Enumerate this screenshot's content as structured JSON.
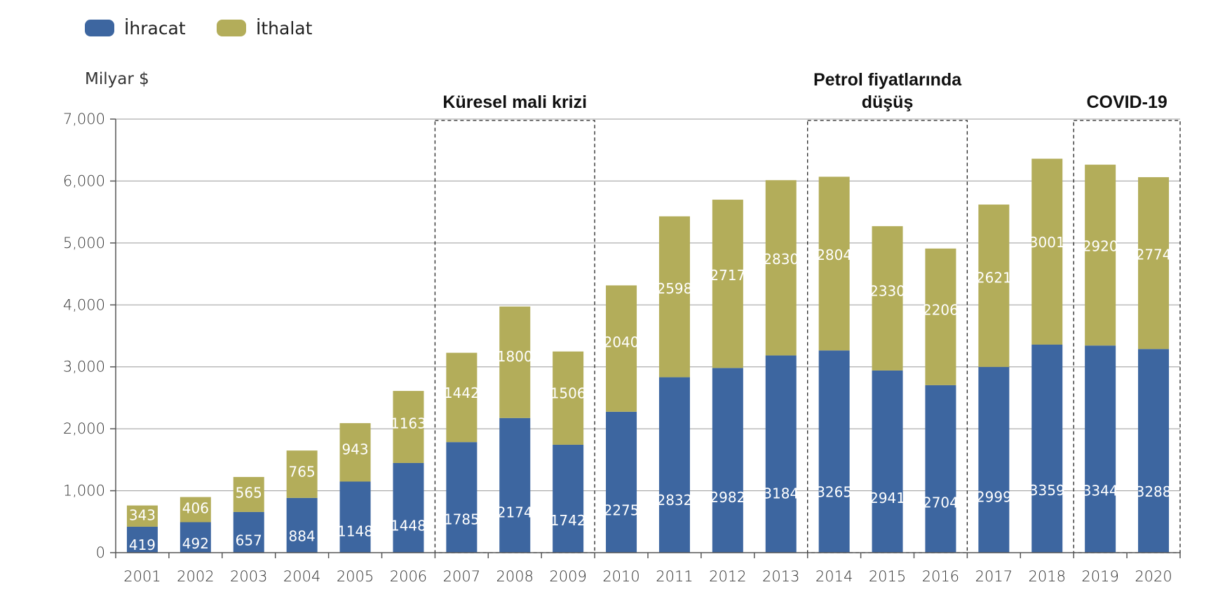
{
  "chart_data": {
    "type": "bar",
    "stacked": true,
    "ylabel": "Milyar $",
    "ylim": [
      0,
      7000
    ],
    "yticks": [
      0,
      1000,
      2000,
      3000,
      4000,
      5000,
      6000,
      7000
    ],
    "ytick_labels": [
      "0",
      "1,000",
      "2,000",
      "3,000",
      "4,000",
      "5,000",
      "6,000",
      "7,000"
    ],
    "grid": true,
    "legend_position": "top-left",
    "categories": [
      "2001",
      "2002",
      "2003",
      "2004",
      "2005",
      "2006",
      "2007",
      "2008",
      "2009",
      "2010",
      "2011",
      "2012",
      "2013",
      "2014",
      "2015",
      "2016",
      "2017",
      "2018",
      "2019",
      "2020"
    ],
    "series": [
      {
        "name": "İhracat",
        "color": "#3d66a0",
        "values": [
          419,
          492,
          657,
          884,
          1148,
          1448,
          1785,
          2174,
          1742,
          2275,
          2832,
          2982,
          3184,
          3265,
          2941,
          2704,
          2999,
          3359,
          3344,
          3288
        ]
      },
      {
        "name": "İthalat",
        "color": "#b3ad5a",
        "values": [
          343,
          406,
          565,
          765,
          943,
          1163,
          1442,
          1800,
          1506,
          2040,
          2598,
          2717,
          2830,
          2804,
          2330,
          2206,
          2621,
          3001,
          2920,
          2774
        ]
      }
    ],
    "annotations": [
      {
        "text_lines": [
          "Küresel mali krizi"
        ],
        "start": "2007",
        "end": "2009"
      },
      {
        "text_lines": [
          "Petrol fiyatlarında",
          "düşüş"
        ],
        "start": "2014",
        "end": "2016"
      },
      {
        "text_lines": [
          "COVID-19"
        ],
        "start": "2019",
        "end": "2020"
      }
    ]
  }
}
